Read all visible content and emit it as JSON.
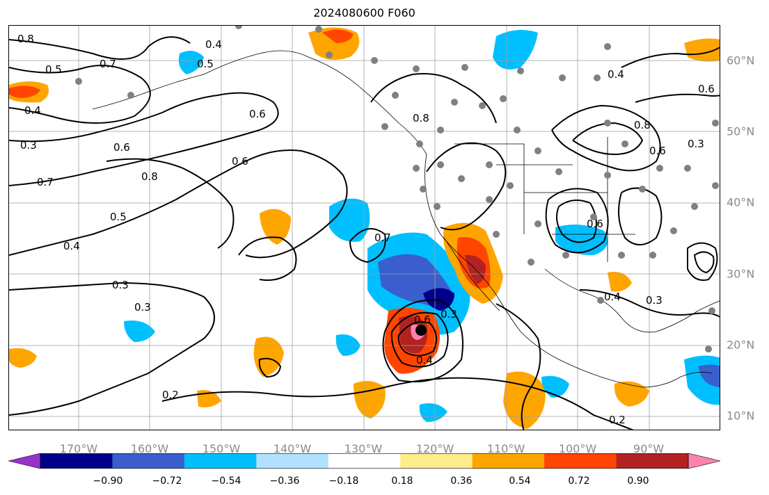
{
  "title": "2024080600 F060",
  "lat_labels": [
    "60°N",
    "50°N",
    "40°N",
    "30°N",
    "20°N",
    "10°N"
  ],
  "lon_labels": [
    "170°W",
    "160°W",
    "150°W",
    "140°W",
    "130°W",
    "120°W",
    "110°W",
    "100°W",
    "90°W"
  ],
  "colorbar": {
    "colors": [
      "#9932cc",
      "#00008b",
      "#3a5fcd",
      "#00bfff",
      "#b0e2ff",
      "#ffffff",
      "#ffec8b",
      "#ffa500",
      "#ff4500",
      "#b22222",
      "#ff82ab"
    ],
    "tick_labels": [
      "−0.90",
      "−0.72",
      "−0.54",
      "−0.36",
      "−0.18",
      "0.18",
      "0.36",
      "0.54",
      "0.72",
      "0.90"
    ]
  },
  "contour_labels": [
    "0.8",
    "0.5",
    "0.4",
    "0.3",
    "0.5",
    "0.7",
    "0.4",
    "0.6",
    "0.8",
    "0.6",
    "0.4",
    "0.7",
    "0.3",
    "0.6",
    "0.8",
    "0.5",
    "0.7",
    "0.4",
    "0.6",
    "0.3",
    "0.8",
    "0.6",
    "0.4",
    "0.3",
    "0.4",
    "0.6",
    "0.2",
    "0.2",
    "0.3",
    "0.6",
    "0.3"
  ]
}
